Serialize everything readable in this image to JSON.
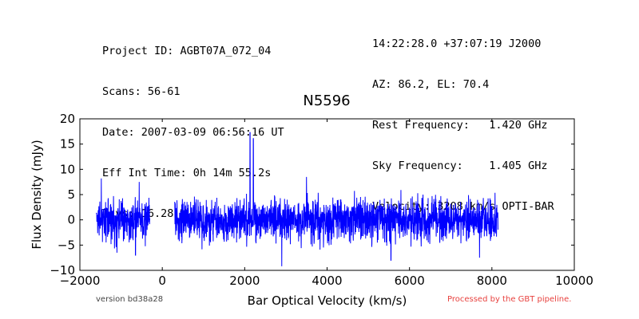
{
  "header": {
    "left_lines": [
      "Project ID: AGBT07A_072_04",
      "Scans: 56-61",
      "Date: 2007-03-09 06:56:16 UT",
      "Eff Int Time: 0h 14m 55.2s",
      "Tsys: 16.28 K"
    ],
    "right_lines": [
      "14:22:28.0 +37:07:19 J2000",
      "AZ: 86.2, EL: 70.4",
      "Rest Frequency:   1.420 GHz",
      "Sky Frequency:    1.405 GHz",
      "Velocity: 3208 km/s OPTI-BAR"
    ]
  },
  "footer": {
    "version": "version bd38a28",
    "processed": "Processed by the GBT pipeline."
  },
  "chart_data": {
    "type": "line",
    "title": "N5596",
    "xlabel": "Bar Optical Velocity (km/s)",
    "ylabel": "Flux Density (mJy)",
    "xlim": [
      -2000,
      10000
    ],
    "ylim": [
      -10,
      20
    ],
    "xticks": [
      -2000,
      0,
      2000,
      4000,
      6000,
      8000,
      10000
    ],
    "yticks": [
      -10,
      -5,
      0,
      5,
      10,
      15,
      20
    ],
    "grid": false,
    "series_color": "#0000ff",
    "segments": [
      {
        "x_range": [
          -1600,
          -300
        ],
        "baseline": 0,
        "noise_rms": 2.3,
        "extremes": [
          [
            -1480,
            8.2
          ],
          [
            -1100,
            -6.5
          ],
          [
            -560,
            7.5
          ],
          [
            -650,
            -7.0
          ]
        ]
      },
      {
        "x_range": [
          300,
          8150
        ],
        "baseline": 0,
        "noise_rms": 2.3,
        "extremes": [
          [
            2130,
            17.3
          ],
          [
            2210,
            16.1
          ],
          [
            2900,
            -9.2
          ],
          [
            3500,
            8.5
          ],
          [
            5550,
            -8.0
          ],
          [
            7700,
            -7.5
          ]
        ]
      }
    ]
  }
}
